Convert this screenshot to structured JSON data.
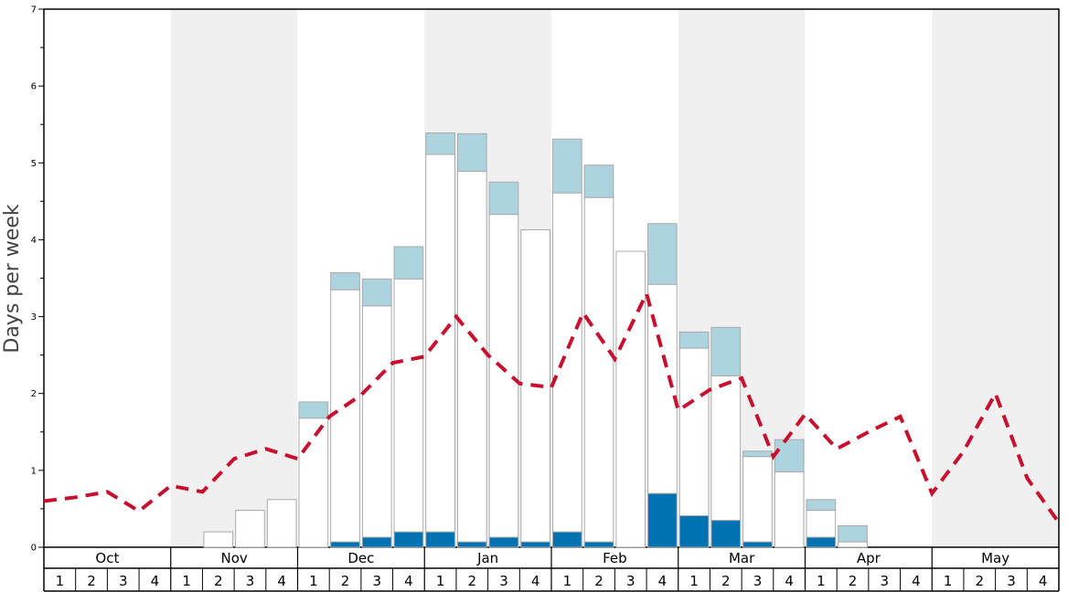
{
  "chart_data": {
    "type": "bar",
    "ylabel": "Days per week",
    "ylim": [
      0,
      7
    ],
    "yticks": [
      0,
      1,
      2,
      3,
      4,
      5,
      6,
      7
    ],
    "months": [
      "Oct",
      "Nov",
      "Dec",
      "Jan",
      "Feb",
      "Mar",
      "Apr",
      "May"
    ],
    "weeks": [
      "1",
      "2",
      "3",
      "4"
    ],
    "shaded_months": [
      "Nov",
      "Jan",
      "Mar",
      "May"
    ],
    "colors": {
      "dark": "#0072b2",
      "light": "#add3df",
      "white": "#ffffff",
      "outline": "#aaaaaa",
      "line": "#c8102e",
      "shade": "#f0f0f0"
    },
    "series": [
      {
        "key": "dark",
        "values": [
          0,
          0,
          0,
          0,
          0,
          0,
          0,
          0,
          0,
          0.07,
          0.13,
          0.2,
          0.2,
          0.07,
          0.13,
          0.07,
          0.2,
          0.07,
          0,
          0.7,
          0.41,
          0.35,
          0.07,
          0,
          0.13,
          0,
          0,
          0,
          0,
          0,
          0,
          0
        ]
      },
      {
        "key": "white",
        "values": [
          0,
          0,
          0,
          0,
          0,
          0.2,
          0.48,
          0.62,
          1.68,
          3.28,
          3.01,
          3.29,
          4.91,
          4.82,
          4.2,
          4.06,
          4.41,
          4.48,
          3.85,
          2.72,
          2.18,
          1.88,
          1.11,
          0.98,
          0.35,
          0.07,
          0,
          0,
          0,
          0,
          0,
          0
        ]
      },
      {
        "key": "light",
        "values": [
          0,
          0,
          0,
          0,
          0,
          0,
          0,
          0,
          0.21,
          0.22,
          0.35,
          0.42,
          0.28,
          0.49,
          0.42,
          0,
          0.7,
          0.42,
          0,
          0.79,
          0.21,
          0.63,
          0.07,
          0.42,
          0.14,
          0.21,
          0,
          0,
          0,
          0,
          0,
          0
        ]
      }
    ],
    "line": {
      "values": [
        0.6,
        0.65,
        0.72,
        0.47,
        0.8,
        0.72,
        1.15,
        1.28,
        1.15,
        1.7,
        1.98,
        2.4,
        2.48,
        3.0,
        2.5,
        2.13,
        2.08,
        3.05,
        2.45,
        3.3,
        1.78,
        2.05,
        2.2,
        1.18,
        1.73,
        1.28,
        1.5,
        1.7,
        0.7,
        1.25,
        2.0,
        0.9,
        0.32
      ]
    }
  }
}
